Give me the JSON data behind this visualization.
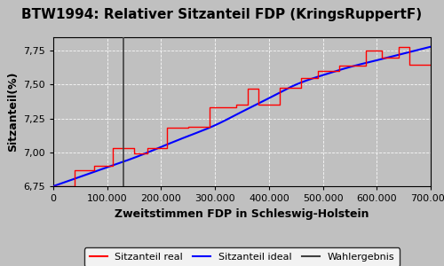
{
  "title": "BTW1994: Relativer Sitzanteil FDP (KringsRuppertF)",
  "xlabel": "Zweitstimmen FDP in Schleswig-Holstein",
  "ylabel": "Sitzanteil(%)",
  "xlim": [
    0,
    700000
  ],
  "ylim": [
    6.75,
    7.85
  ],
  "background_color": "#c0c0c0",
  "wahlergebnis_x": 130000,
  "yticks": [
    6.75,
    7.0,
    7.25,
    7.5,
    7.75
  ],
  "xticks": [
    0,
    100000,
    200000,
    300000,
    400000,
    500000,
    600000,
    700000
  ],
  "legend_labels": [
    "Sitzanteil real",
    "Sitzanteil ideal",
    "Wahlergebnis"
  ],
  "legend_colors": [
    "red",
    "blue",
    "black"
  ],
  "title_fontsize": 11,
  "axis_fontsize": 9,
  "tick_fontsize": 8,
  "ideal_x": [
    0,
    50000,
    100000,
    150000,
    200000,
    250000,
    300000,
    350000,
    400000,
    450000,
    500000,
    550000,
    600000,
    650000,
    700000
  ],
  "ideal_y": [
    6.75,
    6.82,
    6.89,
    6.96,
    7.04,
    7.12,
    7.2,
    7.3,
    7.4,
    7.5,
    7.57,
    7.63,
    7.68,
    7.73,
    7.78
  ],
  "step_x": [
    0,
    40000,
    40000,
    75000,
    75000,
    110000,
    110000,
    150000,
    150000,
    175000,
    175000,
    210000,
    210000,
    250000,
    250000,
    290000,
    290000,
    340000,
    340000,
    360000,
    360000,
    380000,
    380000,
    420000,
    420000,
    460000,
    460000,
    490000,
    490000,
    530000,
    530000,
    580000,
    580000,
    610000,
    610000,
    640000,
    640000,
    660000,
    660000,
    700000
  ],
  "step_y": [
    6.75,
    6.75,
    6.87,
    6.87,
    6.9,
    6.9,
    7.03,
    7.03,
    6.99,
    6.99,
    7.03,
    7.03,
    7.18,
    7.18,
    7.19,
    7.19,
    7.33,
    7.33,
    7.35,
    7.35,
    7.47,
    7.47,
    7.35,
    7.35,
    7.48,
    7.48,
    7.55,
    7.55,
    7.6,
    7.6,
    7.64,
    7.64,
    7.75,
    7.75,
    7.7,
    7.7,
    7.78,
    7.78,
    7.65,
    7.65
  ]
}
